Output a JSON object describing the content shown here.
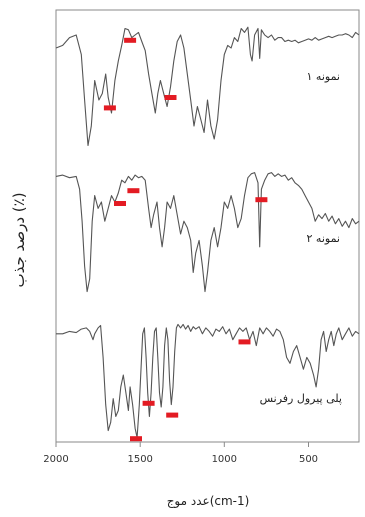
{
  "chart_data": {
    "type": "line",
    "xlabel": "عدد موج(cm-1)",
    "ylabel": "درصد جذب (٪)",
    "xlim": [
      2000,
      200
    ],
    "x_ticks": [
      2000,
      1500,
      1000,
      500
    ],
    "x_tick_labels": [
      "2000",
      "1500",
      "1000",
      "500"
    ],
    "grid": false,
    "marker_color": "#e31b23",
    "line_color": "#555555",
    "series": [
      {
        "name": "نمونه ۱",
        "markers": [
          1560,
          1680,
          1320
        ],
        "points": [
          [
            2000,
            0.2
          ],
          [
            1960,
            0.18
          ],
          [
            1920,
            0.12
          ],
          [
            1880,
            0.1
          ],
          [
            1850,
            0.25
          ],
          [
            1830,
            0.6
          ],
          [
            1810,
            0.95
          ],
          [
            1790,
            0.8
          ],
          [
            1770,
            0.45
          ],
          [
            1745,
            0.6
          ],
          [
            1725,
            0.55
          ],
          [
            1705,
            0.4
          ],
          [
            1690,
            0.58
          ],
          [
            1670,
            0.7
          ],
          [
            1650,
            0.45
          ],
          [
            1630,
            0.3
          ],
          [
            1610,
            0.18
          ],
          [
            1590,
            0.05
          ],
          [
            1570,
            0.06
          ],
          [
            1550,
            0.12
          ],
          [
            1530,
            0.1
          ],
          [
            1510,
            0.08
          ],
          [
            1490,
            0.15
          ],
          [
            1470,
            0.22
          ],
          [
            1450,
            0.4
          ],
          [
            1430,
            0.55
          ],
          [
            1410,
            0.7
          ],
          [
            1395,
            0.55
          ],
          [
            1380,
            0.45
          ],
          [
            1360,
            0.55
          ],
          [
            1340,
            0.65
          ],
          [
            1320,
            0.5
          ],
          [
            1300,
            0.3
          ],
          [
            1280,
            0.15
          ],
          [
            1260,
            0.1
          ],
          [
            1240,
            0.2
          ],
          [
            1220,
            0.4
          ],
          [
            1200,
            0.6
          ],
          [
            1180,
            0.8
          ],
          [
            1160,
            0.65
          ],
          [
            1140,
            0.75
          ],
          [
            1120,
            0.85
          ],
          [
            1100,
            0.6
          ],
          [
            1080,
            0.8
          ],
          [
            1060,
            0.9
          ],
          [
            1040,
            0.75
          ],
          [
            1020,
            0.45
          ],
          [
            1000,
            0.25
          ],
          [
            980,
            0.18
          ],
          [
            960,
            0.2
          ],
          [
            940,
            0.12
          ],
          [
            920,
            0.15
          ],
          [
            900,
            0.05
          ],
          [
            880,
            0.08
          ],
          [
            860,
            0.04
          ],
          [
            845,
            0.25
          ],
          [
            835,
            0.3
          ],
          [
            820,
            0.1
          ],
          [
            800,
            0.05
          ],
          [
            790,
            0.28
          ],
          [
            780,
            0.06
          ],
          [
            760,
            0.1
          ],
          [
            740,
            0.12
          ],
          [
            720,
            0.1
          ],
          [
            700,
            0.14
          ],
          [
            680,
            0.12
          ],
          [
            660,
            0.12
          ],
          [
            640,
            0.15
          ],
          [
            620,
            0.14
          ],
          [
            600,
            0.15
          ],
          [
            580,
            0.14
          ],
          [
            560,
            0.16
          ],
          [
            540,
            0.15
          ],
          [
            520,
            0.14
          ],
          [
            500,
            0.13
          ],
          [
            480,
            0.14
          ],
          [
            460,
            0.12
          ],
          [
            440,
            0.14
          ],
          [
            420,
            0.13
          ],
          [
            400,
            0.12
          ],
          [
            380,
            0.11
          ],
          [
            360,
            0.12
          ],
          [
            340,
            0.11
          ],
          [
            320,
            0.1
          ],
          [
            300,
            0.1
          ],
          [
            280,
            0.09
          ],
          [
            260,
            0.1
          ],
          [
            240,
            0.12
          ],
          [
            220,
            0.08
          ],
          [
            200,
            0.1
          ]
        ]
      },
      {
        "name": "نمونه ۲",
        "markers": [
          1620,
          1540,
          780
        ],
        "points": [
          [
            2000,
            0.05
          ],
          [
            1960,
            0.04
          ],
          [
            1920,
            0.06
          ],
          [
            1880,
            0.05
          ],
          [
            1860,
            0.15
          ],
          [
            1845,
            0.4
          ],
          [
            1830,
            0.75
          ],
          [
            1815,
            0.95
          ],
          [
            1800,
            0.85
          ],
          [
            1785,
            0.4
          ],
          [
            1770,
            0.2
          ],
          [
            1750,
            0.3
          ],
          [
            1730,
            0.25
          ],
          [
            1710,
            0.4
          ],
          [
            1690,
            0.3
          ],
          [
            1670,
            0.2
          ],
          [
            1650,
            0.25
          ],
          [
            1630,
            0.18
          ],
          [
            1610,
            0.08
          ],
          [
            1590,
            0.1
          ],
          [
            1570,
            0.05
          ],
          [
            1550,
            0.08
          ],
          [
            1530,
            0.04
          ],
          [
            1510,
            0.06
          ],
          [
            1490,
            0.05
          ],
          [
            1470,
            0.08
          ],
          [
            1450,
            0.3
          ],
          [
            1435,
            0.45
          ],
          [
            1420,
            0.35
          ],
          [
            1400,
            0.25
          ],
          [
            1385,
            0.45
          ],
          [
            1370,
            0.6
          ],
          [
            1355,
            0.45
          ],
          [
            1340,
            0.25
          ],
          [
            1320,
            0.3
          ],
          [
            1300,
            0.2
          ],
          [
            1280,
            0.35
          ],
          [
            1260,
            0.5
          ],
          [
            1240,
            0.4
          ],
          [
            1220,
            0.45
          ],
          [
            1200,
            0.55
          ],
          [
            1185,
            0.8
          ],
          [
            1170,
            0.65
          ],
          [
            1150,
            0.55
          ],
          [
            1130,
            0.75
          ],
          [
            1115,
            0.95
          ],
          [
            1100,
            0.8
          ],
          [
            1080,
            0.55
          ],
          [
            1060,
            0.45
          ],
          [
            1040,
            0.6
          ],
          [
            1020,
            0.45
          ],
          [
            1000,
            0.25
          ],
          [
            980,
            0.3
          ],
          [
            960,
            0.2
          ],
          [
            940,
            0.3
          ],
          [
            920,
            0.45
          ],
          [
            900,
            0.38
          ],
          [
            880,
            0.2
          ],
          [
            860,
            0.06
          ],
          [
            840,
            0.03
          ],
          [
            820,
            0.02
          ],
          [
            800,
            0.1
          ],
          [
            790,
            0.6
          ],
          [
            780,
            0.15
          ],
          [
            760,
            0.08
          ],
          [
            740,
            0.03
          ],
          [
            720,
            0.02
          ],
          [
            700,
            0.05
          ],
          [
            680,
            0.03
          ],
          [
            660,
            0.05
          ],
          [
            640,
            0.04
          ],
          [
            620,
            0.08
          ],
          [
            600,
            0.06
          ],
          [
            580,
            0.1
          ],
          [
            560,
            0.12
          ],
          [
            540,
            0.15
          ],
          [
            520,
            0.2
          ],
          [
            500,
            0.25
          ],
          [
            480,
            0.3
          ],
          [
            460,
            0.4
          ],
          [
            440,
            0.35
          ],
          [
            420,
            0.38
          ],
          [
            400,
            0.34
          ],
          [
            380,
            0.4
          ],
          [
            360,
            0.36
          ],
          [
            340,
            0.42
          ],
          [
            320,
            0.38
          ],
          [
            300,
            0.44
          ],
          [
            280,
            0.4
          ],
          [
            260,
            0.45
          ],
          [
            240,
            0.38
          ],
          [
            220,
            0.42
          ],
          [
            200,
            0.4
          ]
        ]
      },
      {
        "name": "پلی پیرول رفرنس",
        "markers": [
          1525,
          1450,
          1310,
          880
        ],
        "points": [
          [
            2000,
            0.1
          ],
          [
            1960,
            0.1
          ],
          [
            1920,
            0.08
          ],
          [
            1880,
            0.09
          ],
          [
            1850,
            0.06
          ],
          [
            1820,
            0.05
          ],
          [
            1800,
            0.08
          ],
          [
            1780,
            0.15
          ],
          [
            1770,
            0.1
          ],
          [
            1750,
            0.05
          ],
          [
            1735,
            0.03
          ],
          [
            1720,
            0.3
          ],
          [
            1705,
            0.7
          ],
          [
            1690,
            0.92
          ],
          [
            1675,
            0.85
          ],
          [
            1660,
            0.65
          ],
          [
            1645,
            0.8
          ],
          [
            1630,
            0.75
          ],
          [
            1615,
            0.55
          ],
          [
            1600,
            0.45
          ],
          [
            1585,
            0.6
          ],
          [
            1570,
            0.75
          ],
          [
            1560,
            0.55
          ],
          [
            1545,
            0.7
          ],
          [
            1530,
            0.9
          ],
          [
            1518,
            0.98
          ],
          [
            1505,
            0.7
          ],
          [
            1495,
            0.4
          ],
          [
            1485,
            0.1
          ],
          [
            1475,
            0.05
          ],
          [
            1465,
            0.3
          ],
          [
            1455,
            0.6
          ],
          [
            1445,
            0.8
          ],
          [
            1435,
            0.6
          ],
          [
            1425,
            0.3
          ],
          [
            1415,
            0.08
          ],
          [
            1405,
            0.05
          ],
          [
            1395,
            0.3
          ],
          [
            1385,
            0.6
          ],
          [
            1375,
            0.72
          ],
          [
            1365,
            0.55
          ],
          [
            1355,
            0.2
          ],
          [
            1345,
            0.05
          ],
          [
            1335,
            0.15
          ],
          [
            1325,
            0.5
          ],
          [
            1315,
            0.7
          ],
          [
            1305,
            0.55
          ],
          [
            1295,
            0.25
          ],
          [
            1285,
            0.05
          ],
          [
            1275,
            0.02
          ],
          [
            1260,
            0.05
          ],
          [
            1245,
            0.02
          ],
          [
            1230,
            0.06
          ],
          [
            1215,
            0.03
          ],
          [
            1200,
            0.08
          ],
          [
            1185,
            0.04
          ],
          [
            1170,
            0.06
          ],
          [
            1150,
            0.04
          ],
          [
            1130,
            0.1
          ],
          [
            1110,
            0.05
          ],
          [
            1090,
            0.08
          ],
          [
            1070,
            0.12
          ],
          [
            1050,
            0.06
          ],
          [
            1030,
            0.08
          ],
          [
            1010,
            0.04
          ],
          [
            990,
            0.1
          ],
          [
            970,
            0.06
          ],
          [
            950,
            0.15
          ],
          [
            930,
            0.1
          ],
          [
            910,
            0.05
          ],
          [
            890,
            0.08
          ],
          [
            870,
            0.05
          ],
          [
            850,
            0.15
          ],
          [
            830,
            0.08
          ],
          [
            810,
            0.2
          ],
          [
            790,
            0.05
          ],
          [
            770,
            0.1
          ],
          [
            750,
            0.05
          ],
          [
            730,
            0.08
          ],
          [
            710,
            0.12
          ],
          [
            690,
            0.06
          ],
          [
            670,
            0.08
          ],
          [
            650,
            0.15
          ],
          [
            630,
            0.3
          ],
          [
            610,
            0.35
          ],
          [
            590,
            0.25
          ],
          [
            570,
            0.2
          ],
          [
            550,
            0.3
          ],
          [
            530,
            0.4
          ],
          [
            510,
            0.3
          ],
          [
            490,
            0.35
          ],
          [
            470,
            0.45
          ],
          [
            455,
            0.55
          ],
          [
            440,
            0.4
          ],
          [
            425,
            0.15
          ],
          [
            410,
            0.08
          ],
          [
            395,
            0.25
          ],
          [
            380,
            0.15
          ],
          [
            365,
            0.08
          ],
          [
            350,
            0.2
          ],
          [
            335,
            0.1
          ],
          [
            320,
            0.05
          ],
          [
            300,
            0.15
          ],
          [
            280,
            0.1
          ],
          [
            260,
            0.05
          ],
          [
            240,
            0.12
          ],
          [
            220,
            0.08
          ],
          [
            200,
            0.1
          ]
        ]
      }
    ]
  }
}
